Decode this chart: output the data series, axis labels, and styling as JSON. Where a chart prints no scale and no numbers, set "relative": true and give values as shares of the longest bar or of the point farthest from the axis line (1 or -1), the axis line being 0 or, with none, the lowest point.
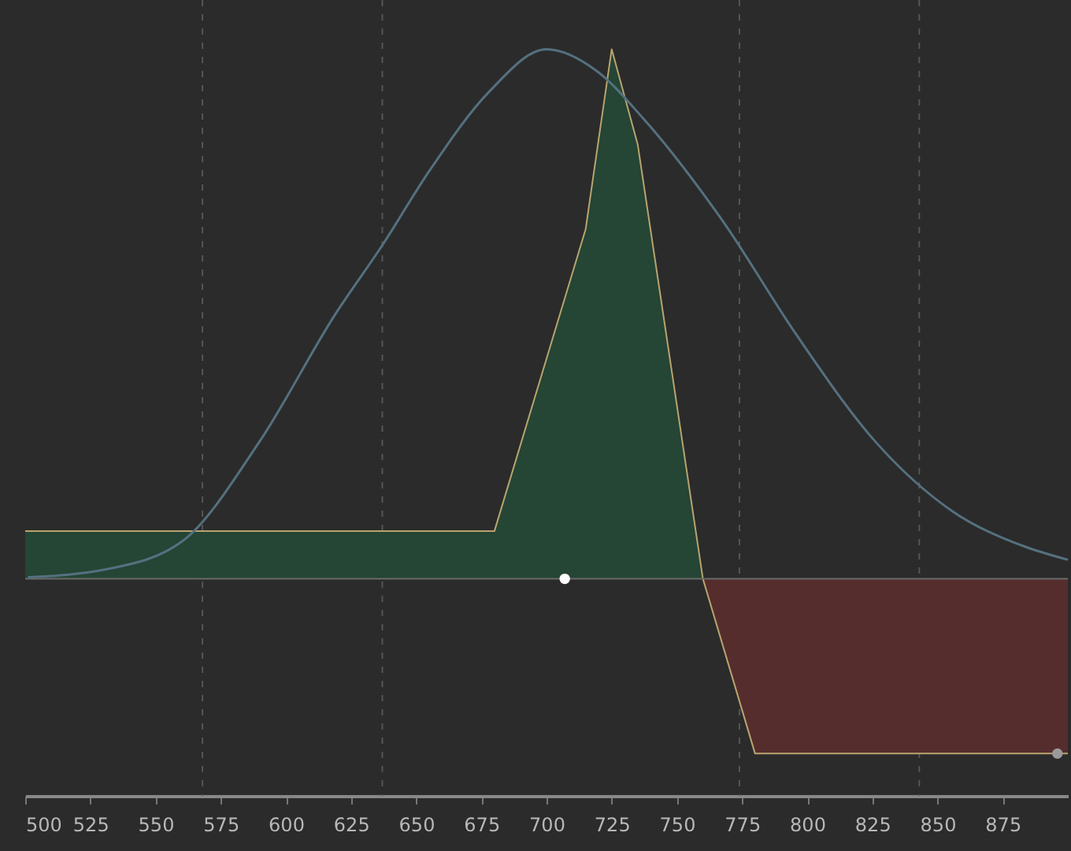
{
  "chart_data": {
    "type": "line",
    "relative": true,
    "xlim": [
      500,
      900
    ],
    "xticks": [
      500,
      525,
      550,
      575,
      600,
      625,
      650,
      675,
      700,
      725,
      750,
      775,
      800,
      825,
      850,
      875
    ],
    "grid": false,
    "tick_labels": "x",
    "series": [
      {
        "color": "#55707f",
        "x": [
          501,
          531,
          560,
          590,
          619,
          637,
          655,
          678,
          700,
          719,
          737,
          767,
          796,
          826,
          855,
          884,
          900
        ],
        "values": [
          0.003,
          0.018,
          0.07,
          0.26,
          0.5,
          0.63,
          0.77,
          0.92,
          1.0,
          0.96,
          0.87,
          0.68,
          0.46,
          0.26,
          0.13,
          0.06,
          0.036
        ]
      },
      {
        "type": "area",
        "color": "#254535",
        "x": [
          500,
          680,
          715,
          725,
          735,
          760
        ],
        "values": [
          0.09,
          0.09,
          0.66,
          1.0,
          0.82,
          0
        ]
      },
      {
        "type": "area",
        "color": "#552d2d",
        "x": [
          760,
          780,
          900
        ],
        "values": [
          0,
          -0.33,
          -0.33
        ]
      },
      {
        "type": "scatter",
        "color": "#ffffff",
        "x": [
          707
        ],
        "values": [
          0
        ],
        "marker": "circle"
      },
      {
        "type": "scatter",
        "color": "#9a9a9a",
        "x": [
          896
        ],
        "values": [
          -0.33
        ],
        "marker": "circle"
      }
    ],
    "ref_lines": [
      {
        "axis": "y",
        "value": 0,
        "color": "#6a6a6a",
        "line_style": "solid"
      },
      {
        "axis": "x",
        "value": 568,
        "color": "#555555",
        "line_style": "dashed"
      },
      {
        "axis": "x",
        "value": 637,
        "color": "#555555",
        "line_style": "dashed"
      },
      {
        "axis": "x",
        "value": 774,
        "color": "#555555",
        "line_style": "dashed"
      },
      {
        "axis": "x",
        "value": 843,
        "color": "#555555",
        "line_style": "dashed"
      }
    ]
  }
}
